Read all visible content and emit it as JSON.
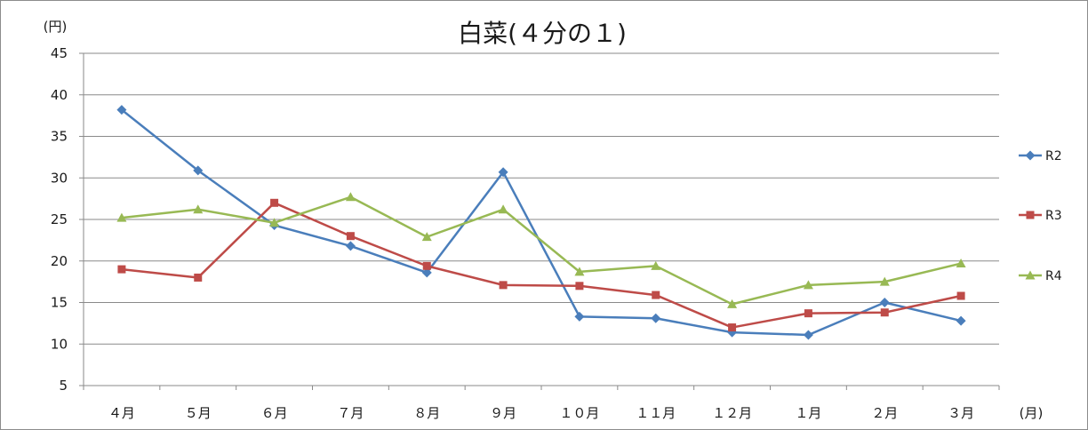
{
  "chart_data": {
    "type": "line",
    "title": "白菜(４分の１)",
    "ylabel": "(円)",
    "xlabel": "(月)",
    "ylim": [
      5,
      45
    ],
    "yticks": [
      5,
      10,
      15,
      20,
      25,
      30,
      35,
      40,
      45
    ],
    "grid": true,
    "legend_position": "right",
    "categories": [
      "４月",
      "５月",
      "６月",
      "７月",
      "８月",
      "９月",
      "１０月",
      "１１月",
      "１２月",
      "１月",
      "２月",
      "３月"
    ],
    "series": [
      {
        "name": "R2",
        "color": "#4a7ebb",
        "marker": "diamond",
        "values": [
          38.2,
          30.9,
          24.3,
          21.8,
          18.6,
          30.7,
          13.3,
          13.1,
          11.4,
          11.1,
          15.0,
          12.8
        ]
      },
      {
        "name": "R3",
        "color": "#be4b48",
        "marker": "square",
        "values": [
          19.0,
          18.0,
          27.0,
          23.0,
          19.4,
          17.1,
          17.0,
          15.9,
          12.0,
          13.7,
          13.8,
          15.8
        ]
      },
      {
        "name": "R4",
        "color": "#98b954",
        "marker": "triangle",
        "values": [
          25.2,
          26.2,
          24.6,
          27.7,
          22.9,
          26.2,
          18.7,
          19.4,
          14.8,
          17.1,
          17.5,
          19.7
        ]
      }
    ]
  }
}
